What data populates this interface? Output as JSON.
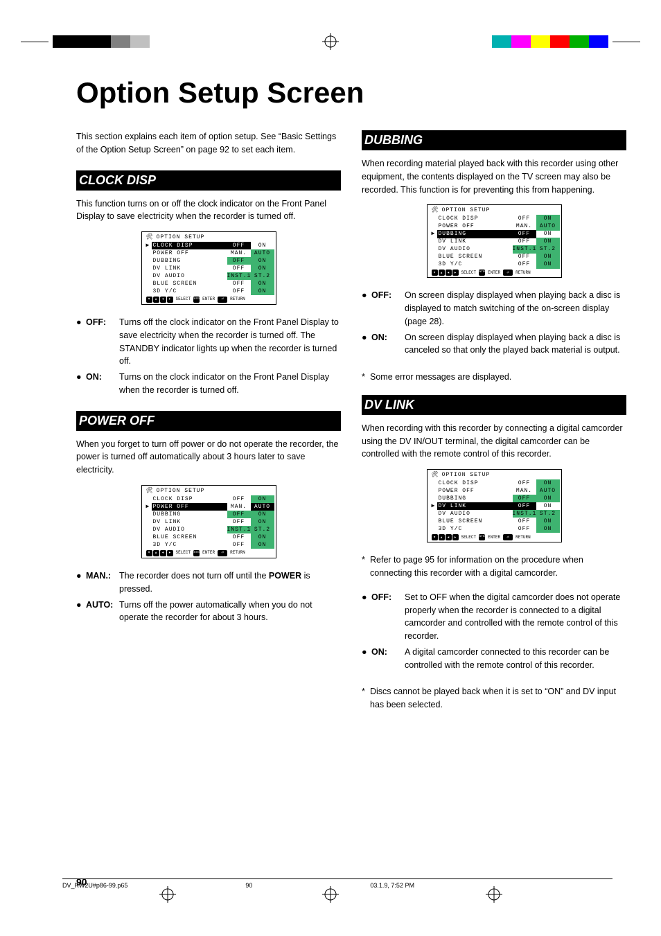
{
  "crop_bars_left": [
    "#000000",
    "#000000",
    "#000000",
    "#808080",
    "#c0c0c0",
    "#ffffff"
  ],
  "crop_bars_right": [
    "#00b0b0",
    "#ff00ff",
    "#ffff00",
    "#ff0000",
    "#00b000",
    "#0000ff"
  ],
  "main_title": "Option Setup Screen",
  "intro": "This section explains each item of option setup. See “Basic Settings of the Option Setup Screen” on page 92 to set each item.",
  "sections": {
    "clock_disp": {
      "header": "CLOCK DISP",
      "body": "This function turns on or off the clock indicator on the Front Panel Display to save electricity when the recorder is turned off.",
      "bullets": [
        {
          "label": "OFF:",
          "text": "Turns off the clock indicator on the Front Panel Display to save electricity when the recorder is turned off. The STANDBY indicator lights up when the recorder is turned off."
        },
        {
          "label": "ON:",
          "text": "Turns on the clock indicator on the Front Panel Display when the recorder is turned off."
        }
      ]
    },
    "power_off": {
      "header": "POWER OFF",
      "body": "When you forget to turn off power or do not operate the recorder, the power is turned off automatically about 3 hours later to save electricity.",
      "bullets": [
        {
          "label": "MAN.:",
          "text_pre": "The recorder does not turn off until the ",
          "bold": "POWER",
          "text_post": " is pressed."
        },
        {
          "label": "AUTO:",
          "text": "Turns off the power automatically when you do not operate the recorder for about 3 hours."
        }
      ]
    },
    "dubbing": {
      "header": "DUBBING",
      "body": "When recording material played back with this recorder using other equipment, the contents displayed on the TV screen may also be recorded. This function is for preventing this from happening.",
      "bullets": [
        {
          "label": "OFF:",
          "text": "On screen display displayed when playing back a disc is displayed to match switching of the on-screen display (page 28)."
        },
        {
          "label": "ON:",
          "text": "On screen display displayed when playing back a disc is canceled so that only the played back material is output."
        }
      ],
      "footnote": "Some error messages are displayed."
    },
    "dv_link": {
      "header": "DV LINK",
      "body": "When recording with this recorder by connecting a digital camcorder using the DV IN/OUT terminal, the digital camcorder can be controlled with the remote control of this recorder.",
      "pre_note": "Refer to page 95 for information on the procedure when connecting this recorder with a digital camcorder.",
      "bullets": [
        {
          "label": "OFF:",
          "text": "Set to OFF when the digital camcorder does not operate properly when the recorder is connected to a digital camcorder and controlled with the remote control of this recorder."
        },
        {
          "label": "ON:",
          "text": "A digital camcorder connected to this recorder can be controlled with the remote control of this recorder."
        }
      ],
      "footnote": "Discs cannot be played back when it is set to “ON” and DV input has been selected."
    }
  },
  "osd_common": {
    "title": "OPTION SETUP",
    "rows_full": [
      {
        "label": "CLOCK DISP",
        "o1": "OFF",
        "o2": "ON"
      },
      {
        "label": "POWER OFF",
        "o1": "MAN.",
        "o2": "AUTO"
      },
      {
        "label": "DUBBING",
        "o1": "OFF",
        "o2": "ON"
      },
      {
        "label": "DV LINK",
        "o1": "OFF",
        "o2": "ON"
      },
      {
        "label": "DV AUDIO",
        "o1": "INST.1",
        "o2": "ST.2"
      },
      {
        "label": "BLUE SCREEN",
        "o1": "OFF",
        "o2": "ON"
      },
      {
        "label": "3D Y/C",
        "o1": "OFF",
        "o2": "ON"
      }
    ],
    "rows_compact": [
      {
        "label": "CLOCK DISP",
        "o1": "OFF",
        "o2": "ON"
      },
      {
        "label": "POWER OFF",
        "o1": "MAN.",
        "o2": "AUTO"
      },
      {
        "label": "DUBBING",
        "o1": "OFF",
        "o2": "ON"
      },
      {
        "label": "DV LINK",
        "o1": "OFF",
        "o2": "ON"
      },
      {
        "label": "DV AUDIO",
        "o1": "INST.1",
        "o2": "ST.2"
      },
      {
        "label": "BLUE SCREEN",
        "o1": "OFF",
        "o2": "ON"
      },
      {
        "label": "3D Y/C",
        "o1": "OFF",
        "o2": "ON"
      }
    ],
    "footer_select": "SELECT",
    "footer_enter": "ENTER",
    "footer_enter2": "ENTER",
    "footer_return": "RETURN"
  },
  "page_number": "90",
  "footer_file": "DV_RW2U#p86-99.p65",
  "footer_page": "90",
  "footer_date": "03.1.9, 7:52 PM"
}
